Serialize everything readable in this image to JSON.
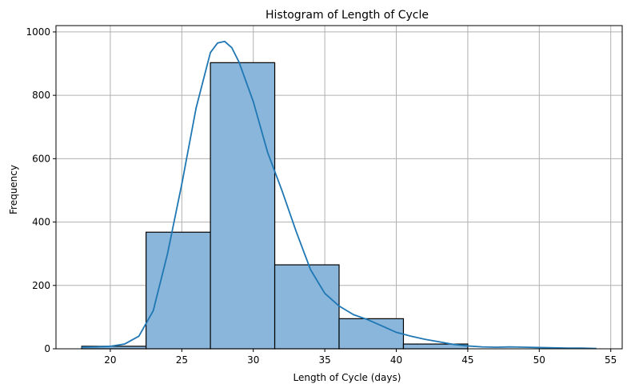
{
  "chart_data": {
    "type": "bar",
    "title": "Histogram of Length of Cycle",
    "xlabel": "Length of Cycle (days)",
    "ylabel": "Frequency",
    "xlim": [
      16.2,
      55.8
    ],
    "ylim": [
      0,
      1020
    ],
    "x_ticks": [
      20,
      25,
      30,
      35,
      40,
      45,
      50,
      55
    ],
    "y_ticks": [
      0,
      200,
      400,
      600,
      800,
      1000
    ],
    "grid": true,
    "bins": [
      {
        "start": 18.0,
        "end": 22.5,
        "count": 8
      },
      {
        "start": 22.5,
        "end": 27.0,
        "count": 368
      },
      {
        "start": 27.0,
        "end": 31.5,
        "count": 903
      },
      {
        "start": 31.5,
        "end": 36.0,
        "count": 265
      },
      {
        "start": 36.0,
        "end": 40.5,
        "count": 95
      },
      {
        "start": 40.5,
        "end": 45.0,
        "count": 15
      },
      {
        "start": 45.0,
        "end": 49.5,
        "count": 0
      },
      {
        "start": 49.5,
        "end": 54.0,
        "count": 0
      }
    ],
    "kde": {
      "x": [
        18,
        19,
        20,
        21,
        22,
        23,
        24,
        25,
        26,
        27,
        27.5,
        28,
        28.5,
        29,
        30,
        31,
        32,
        33,
        34,
        35,
        36,
        37,
        38,
        39,
        40,
        41,
        42,
        43,
        44,
        45,
        46,
        47,
        48,
        49,
        50,
        51,
        52,
        53,
        54
      ],
      "y": [
        5,
        6,
        8,
        15,
        40,
        120,
        300,
        520,
        760,
        935,
        965,
        970,
        950,
        905,
        780,
        620,
        500,
        370,
        250,
        175,
        135,
        108,
        92,
        72,
        52,
        40,
        30,
        22,
        14,
        9,
        6,
        5,
        6,
        5,
        4,
        3,
        2,
        2,
        1
      ]
    },
    "bar_color": "#89b6da",
    "line_color": "#1f77b4"
  }
}
